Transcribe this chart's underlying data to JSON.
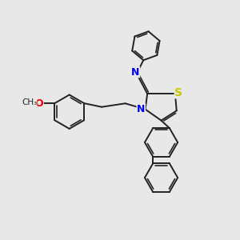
{
  "bg_color": "#e8e8e8",
  "S_color": "#c8c800",
  "N_color": "#0000ee",
  "O_color": "#ee0000",
  "bond_color": "#222222",
  "bond_width": 1.4,
  "fig_width": 3.0,
  "fig_height": 3.0,
  "dpi": 100,
  "xlim": [
    0,
    10
  ],
  "ylim": [
    0,
    10
  ]
}
